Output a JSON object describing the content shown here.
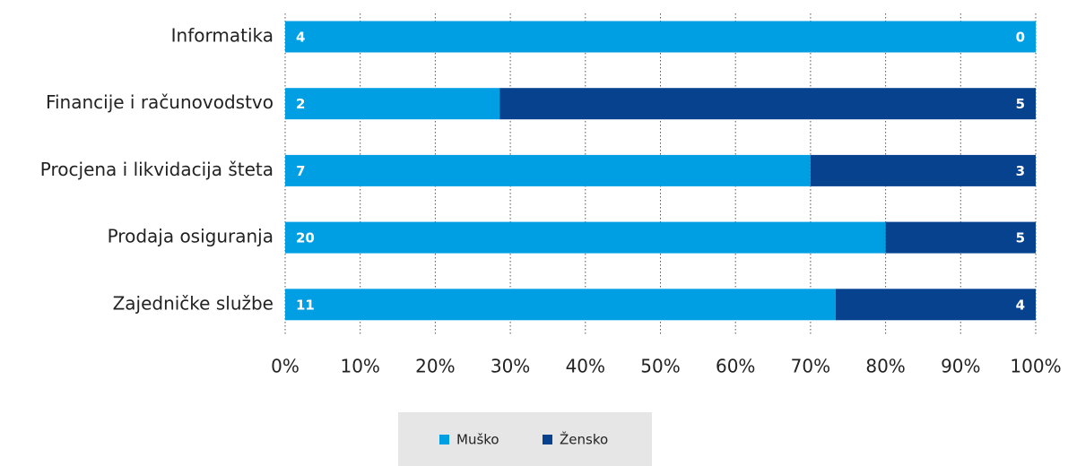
{
  "chart_data": {
    "type": "bar",
    "orientation": "horizontal",
    "stacking": "percent",
    "categories": [
      "Informatika",
      "Financije i računovodstvo",
      "Procjena i likvidacija šteta",
      "Prodaja osiguranja",
      "Zajedničke službe"
    ],
    "series": [
      {
        "name": "Muško",
        "color": "#009fe3",
        "values": [
          4,
          2,
          7,
          20,
          11
        ]
      },
      {
        "name": "Žensko",
        "color": "#07428e",
        "values": [
          0,
          5,
          3,
          5,
          4
        ]
      }
    ],
    "xlim": [
      0,
      100
    ],
    "xticks": [
      {
        "value": 0,
        "label": "0%"
      },
      {
        "value": 10,
        "label": "10%"
      },
      {
        "value": 20,
        "label": "20%"
      },
      {
        "value": 30,
        "label": "30%"
      },
      {
        "value": 40,
        "label": "40%"
      },
      {
        "value": 50,
        "label": "50%"
      },
      {
        "value": 60,
        "label": "60%"
      },
      {
        "value": 70,
        "label": "70%"
      },
      {
        "value": 80,
        "label": "80%"
      },
      {
        "value": 90,
        "label": "90%"
      },
      {
        "value": 100,
        "label": "100%"
      }
    ],
    "grid": true,
    "legend": "bottom"
  }
}
